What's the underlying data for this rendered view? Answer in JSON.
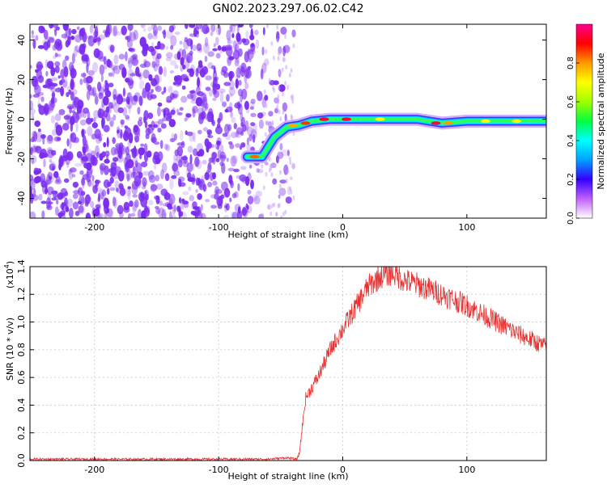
{
  "title": "GN02.2023.297.06.02.C42",
  "chart_data": [
    {
      "type": "heatmap",
      "title": "",
      "xlabel": "Height of straight line (km)",
      "ylabel": "Frequency (Hz)",
      "xlim": [
        -252,
        164
      ],
      "ylim": [
        -50,
        48
      ],
      "xticks": [
        -200,
        -100,
        0,
        100
      ],
      "yticks": [
        -40,
        -20,
        0,
        20,
        40
      ],
      "colorbar": {
        "label": "Normalized spectral amplitude",
        "range": [
          0,
          1
        ],
        "ticks": [
          "0.0",
          "0.2",
          "0.4",
          "0.6",
          "0.8"
        ],
        "colors": [
          "#ffffff",
          "#c060ff",
          "#3300ff",
          "#00a0ff",
          "#00ffff",
          "#00ff40",
          "#a0ff00",
          "#ffff00",
          "#ff9900",
          "#ff0000",
          "#ff0090"
        ]
      },
      "signal_track": [
        {
          "x": -77,
          "y": -19
        },
        {
          "x": -65,
          "y": -19
        },
        {
          "x": -55,
          "y": -9
        },
        {
          "x": -45,
          "y": -4
        },
        {
          "x": -35,
          "y": -3
        },
        {
          "x": -25,
          "y": -1
        },
        {
          "x": -10,
          "y": 0
        },
        {
          "x": 20,
          "y": 0
        },
        {
          "x": 60,
          "y": 0
        },
        {
          "x": 80,
          "y": -2
        },
        {
          "x": 100,
          "y": -1
        },
        {
          "x": 164,
          "y": -1
        }
      ],
      "noise_region_x": [
        -252,
        -52
      ],
      "noise_color": "#7a2bf0"
    },
    {
      "type": "line",
      "title": "",
      "xlabel": "Height of straight line (km)",
      "ylabel": "SNR (10 * v/v)",
      "yscale_label": "(x10",
      "yscale_exp": "4",
      "xlim": [
        -252,
        164
      ],
      "ylim": [
        0,
        1.4
      ],
      "xticks": [
        -200,
        -100,
        0,
        100
      ],
      "yticks": [
        "0.0",
        "0.2",
        "0.4",
        "0.6",
        "0.8",
        "1.0",
        "1.2",
        "1.4"
      ],
      "color": "#e83030",
      "series": [
        {
          "x": [
            -252,
            -200,
            -150,
            -100,
            -60,
            -45,
            -37,
            -35,
            -30,
            -20,
            -10,
            0,
            10,
            20,
            30,
            40,
            50,
            60,
            80,
            100,
            120,
            140,
            164
          ],
          "y": [
            0.01,
            0.01,
            0.01,
            0.01,
            0.01,
            0.02,
            0.01,
            0.05,
            0.45,
            0.6,
            0.8,
            0.95,
            1.1,
            1.25,
            1.33,
            1.36,
            1.3,
            1.27,
            1.2,
            1.12,
            1.02,
            0.92,
            0.82
          ]
        }
      ]
    }
  ]
}
